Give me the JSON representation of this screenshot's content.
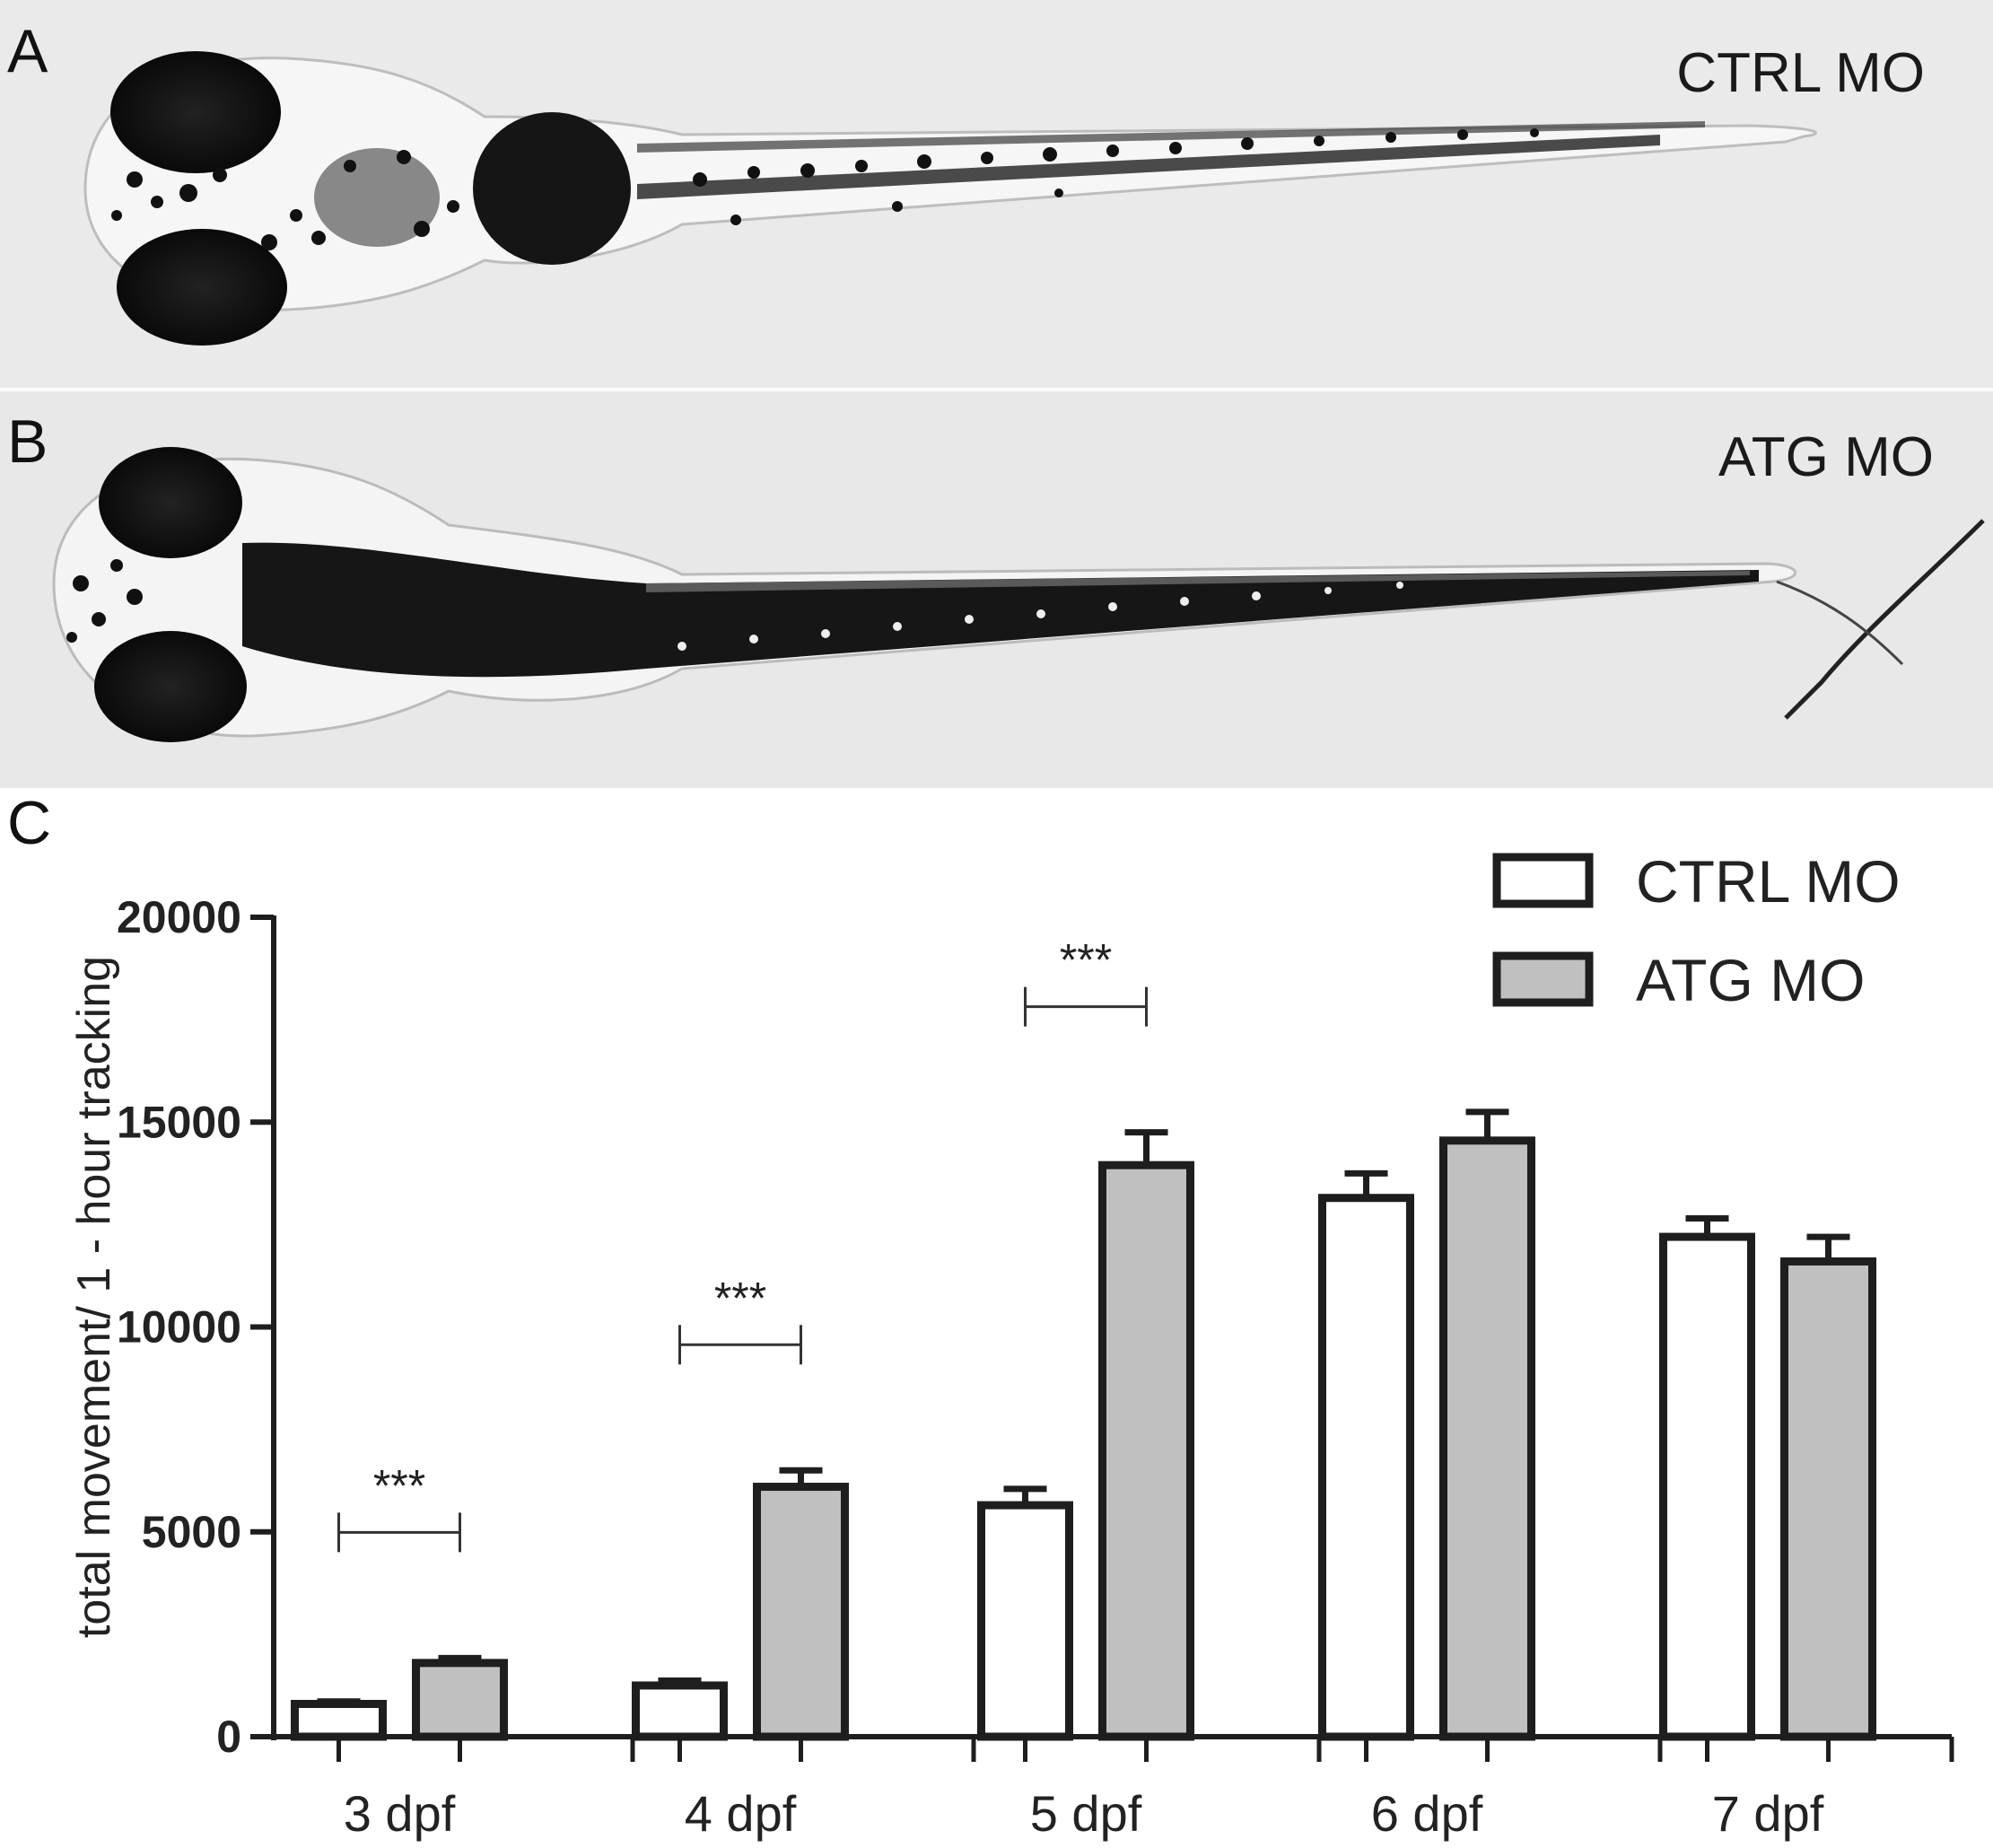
{
  "panels": {
    "a": {
      "letter": "A",
      "label": "CTRL MO"
    },
    "b": {
      "letter": "B",
      "label": "ATG MO"
    },
    "c": {
      "letter": "C"
    }
  },
  "chart_data": {
    "type": "bar",
    "title": "",
    "xlabel": "",
    "ylabel": "total movement/ 1 - hour tracking",
    "ylim": [
      0,
      20000
    ],
    "yticks": [
      0,
      5000,
      10000,
      15000,
      20000
    ],
    "categories": [
      "3 dpf",
      "4 dpf",
      "5 dpf",
      "6 dpf",
      "7 dpf"
    ],
    "series": [
      {
        "name": "CTRL MO",
        "color": "#ffffff",
        "values": [
          800,
          1250,
          5650,
          13150,
          12200
        ],
        "errors": [
          60,
          120,
          400,
          600,
          450
        ]
      },
      {
        "name": "ATG MO",
        "color": "#c0c0c0",
        "values": [
          1800,
          6100,
          13950,
          14550,
          11600
        ],
        "errors": [
          120,
          400,
          800,
          700,
          600
        ]
      }
    ],
    "significance": [
      {
        "category": "3 dpf",
        "label": "***"
      },
      {
        "category": "4 dpf",
        "label": "***"
      },
      {
        "category": "5 dpf",
        "label": "***"
      }
    ],
    "error_bars": true,
    "grid": false,
    "legend_position": "top-right"
  }
}
